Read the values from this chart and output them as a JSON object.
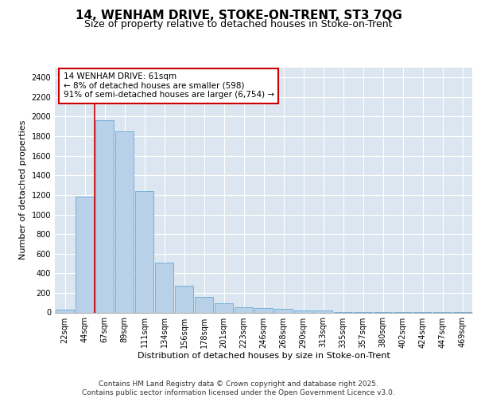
{
  "title_line1": "14, WENHAM DRIVE, STOKE-ON-TRENT, ST3 7QG",
  "title_line2": "Size of property relative to detached houses in Stoke-on-Trent",
  "xlabel": "Distribution of detached houses by size in Stoke-on-Trent",
  "ylabel": "Number of detached properties",
  "categories": [
    "22sqm",
    "44sqm",
    "67sqm",
    "89sqm",
    "111sqm",
    "134sqm",
    "156sqm",
    "178sqm",
    "201sqm",
    "223sqm",
    "246sqm",
    "268sqm",
    "290sqm",
    "313sqm",
    "335sqm",
    "357sqm",
    "380sqm",
    "402sqm",
    "424sqm",
    "447sqm",
    "469sqm"
  ],
  "values": [
    30,
    1180,
    1960,
    1850,
    1240,
    510,
    270,
    155,
    90,
    50,
    42,
    35,
    22,
    18,
    5,
    5,
    5,
    2,
    2,
    2,
    2
  ],
  "bar_color": "#b8d0e8",
  "bar_edge_color": "#6aaad4",
  "vline_x_index": 1,
  "vline_color": "#cc0000",
  "annotation_text": "14 WENHAM DRIVE: 61sqm\n← 8% of detached houses are smaller (598)\n91% of semi-detached houses are larger (6,754) →",
  "annotation_box_color": "#ffffff",
  "annotation_box_edge_color": "#cc0000",
  "ylim": [
    0,
    2500
  ],
  "yticks": [
    0,
    200,
    400,
    600,
    800,
    1000,
    1200,
    1400,
    1600,
    1800,
    2000,
    2200,
    2400
  ],
  "background_color": "#dce6f0",
  "grid_color": "#ffffff",
  "footer_text": "Contains HM Land Registry data © Crown copyright and database right 2025.\nContains public sector information licensed under the Open Government Licence v3.0.",
  "title_fontsize": 11,
  "subtitle_fontsize": 9,
  "axis_label_fontsize": 8,
  "tick_fontsize": 7,
  "annotation_fontsize": 7.5
}
